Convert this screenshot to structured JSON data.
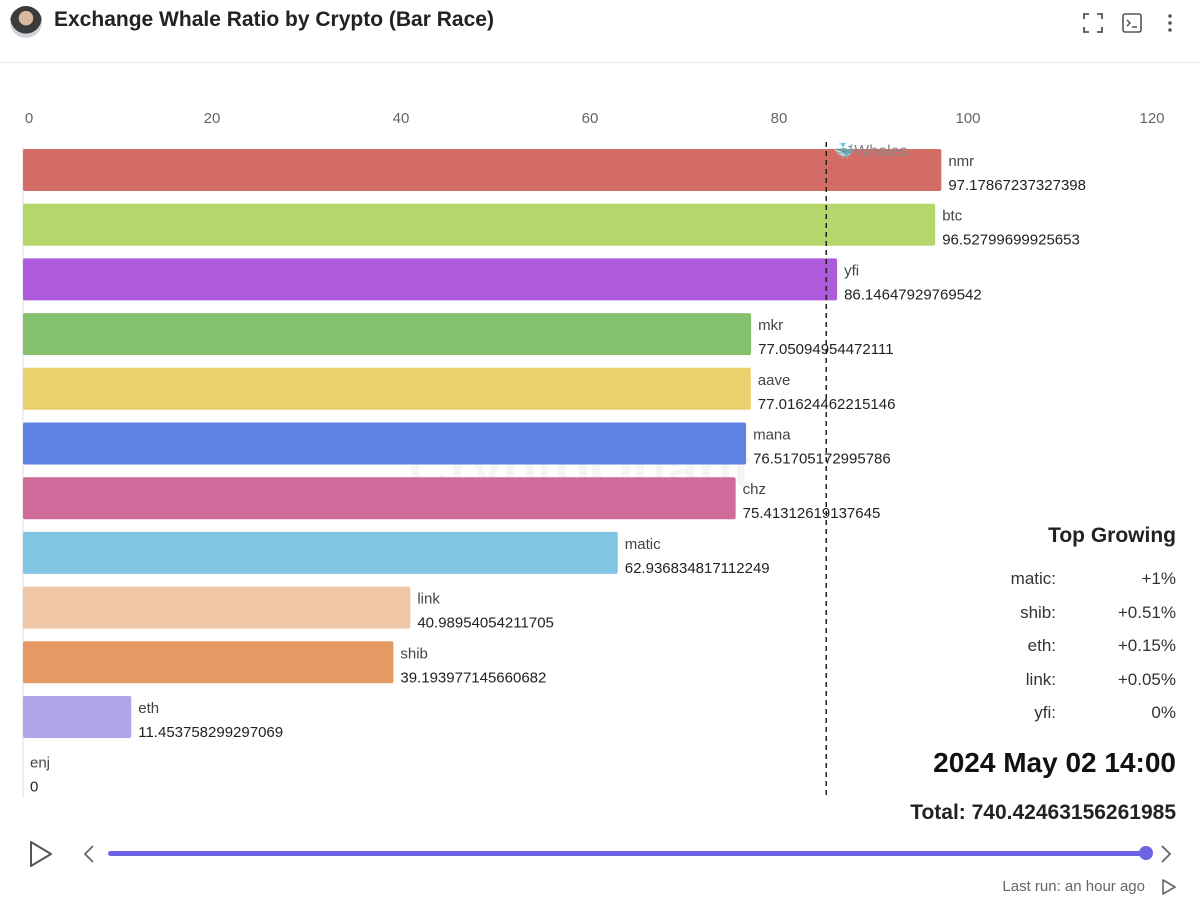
{
  "header": {
    "title": "Exchange Whale Ratio by Crypto (Bar Race)",
    "icons": [
      "avatar",
      "fullscreen-icon",
      "code-icon",
      "more-vertical-icon"
    ]
  },
  "chart_data": {
    "type": "bar",
    "orientation": "horizontal",
    "title": "",
    "xlim": [
      0,
      120
    ],
    "x_ticks": [
      0,
      20,
      40,
      60,
      80,
      100,
      120
    ],
    "reference_line": {
      "label": "🐳Whales",
      "value": 85
    },
    "watermark": "CryptoQuant",
    "bars": [
      {
        "name": "nmr",
        "value": 97.17867237327398,
        "label": "97.17867237327398",
        "color": "#d56d67"
      },
      {
        "name": "btc",
        "value": 96.52799699925653,
        "label": "96.52799699925653",
        "color": "#b4d66b"
      },
      {
        "name": "yfi",
        "value": 86.14647929769542,
        "label": "86.14647929769542",
        "color": "#ad5add"
      },
      {
        "name": "mkr",
        "value": 77.0509495447211,
        "label": "77.05094954472111",
        "color": "#85c06c"
      },
      {
        "name": "aave",
        "value": 77.01624462215146,
        "label": "77.01624462215146",
        "color": "#ecd06c"
      },
      {
        "name": "mana",
        "value": 76.51705172995786,
        "label": "76.51705172995786",
        "color": "#5f81e3"
      },
      {
        "name": "chz",
        "value": 75.41312619137645,
        "label": "75.41312619137645",
        "color": "#cf6b9b"
      },
      {
        "name": "matic",
        "value": 62.93683481711225,
        "label": "62.936834817112249",
        "color": "#82c5e2"
      },
      {
        "name": "link",
        "value": 40.98954054211705,
        "label": "40.98954054211705",
        "color": "#efc6a6"
      },
      {
        "name": "shib",
        "value": 39.19397714566068,
        "label": "39.193977145660682",
        "color": "#e69a63"
      },
      {
        "name": "eth",
        "value": 11.45375829929707,
        "label": "11.453758299297069",
        "color": "#afa6ea"
      },
      {
        "name": "enj",
        "value": 0,
        "label": "0",
        "color": "#cccccc"
      }
    ]
  },
  "top_growing": {
    "title": "Top Growing",
    "items": [
      {
        "name": "matic:",
        "value": "+1%"
      },
      {
        "name": "shib:",
        "value": "+0.51%"
      },
      {
        "name": "eth:",
        "value": "+0.15%"
      },
      {
        "name": "link:",
        "value": "+0.05%"
      },
      {
        "name": "yfi:",
        "value": "0%"
      }
    ]
  },
  "date": "2024 May 02 14:00",
  "total": "Total: 740.42463156261985",
  "player": {
    "progress_percent": 100
  },
  "footer": {
    "last_run": "Last run: an hour ago"
  },
  "colors": {
    "accent": "#6c63e0"
  }
}
